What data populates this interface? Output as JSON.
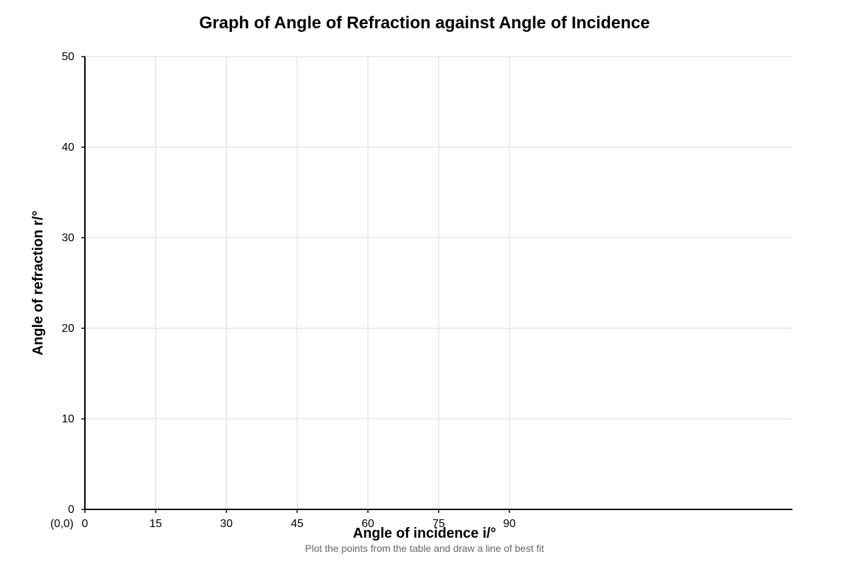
{
  "chart_data": {
    "type": "line",
    "title": "Graph of Angle of Refraction against Angle of Incidence",
    "xlabel": "Angle of incidence i/°",
    "ylabel": "Angle of refraction r/°",
    "caption": "Plot the points from the table and draw a line of best fit",
    "origin_label": "(0,0)",
    "x_ticks": [
      0,
      15,
      30,
      45,
      60,
      75,
      90
    ],
    "y_ticks": [
      0,
      10,
      20,
      30,
      40,
      50
    ],
    "xlim": [
      0,
      150
    ],
    "ylim": [
      0,
      50
    ],
    "grid": true,
    "series": [],
    "colors": {
      "grid": "#d9d9d9",
      "axis": "#000000",
      "caption": "#666666"
    }
  }
}
